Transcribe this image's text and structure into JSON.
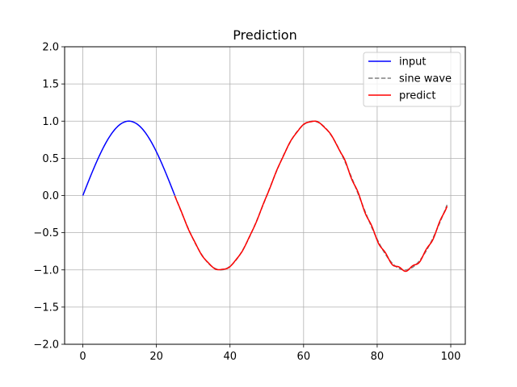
{
  "chart_data": {
    "type": "line",
    "title": "Prediction",
    "xlabel": "",
    "ylabel": "",
    "xlim": [
      -4.95,
      103.95
    ],
    "ylim": [
      -2.0,
      2.0
    ],
    "xticks": [
      0,
      20,
      40,
      60,
      80,
      100
    ],
    "yticks": [
      -2.0,
      -1.5,
      -1.0,
      -0.5,
      0.0,
      0.5,
      1.0,
      1.5,
      2.0
    ],
    "ytick_labels": [
      "−2.0",
      "−1.5",
      "−1.0",
      "−0.5",
      "0.0",
      "0.5",
      "1.0",
      "1.5",
      "2.0"
    ],
    "grid": true,
    "legend_position": "top-right",
    "series": [
      {
        "name": "input",
        "color": "#0000ff",
        "style": "solid",
        "x_range": [
          0,
          25
        ],
        "period": 50,
        "amplitude": 1.0
      },
      {
        "name": "sine wave",
        "color": "#808080",
        "style": "dashed",
        "x_range": [
          25,
          99
        ],
        "period": 50,
        "amplitude": 1.0
      },
      {
        "name": "predict",
        "color": "#ff0000",
        "style": "solid",
        "x_range": [
          25,
          99
        ],
        "period": 50,
        "amplitude": 1.0
      }
    ]
  }
}
